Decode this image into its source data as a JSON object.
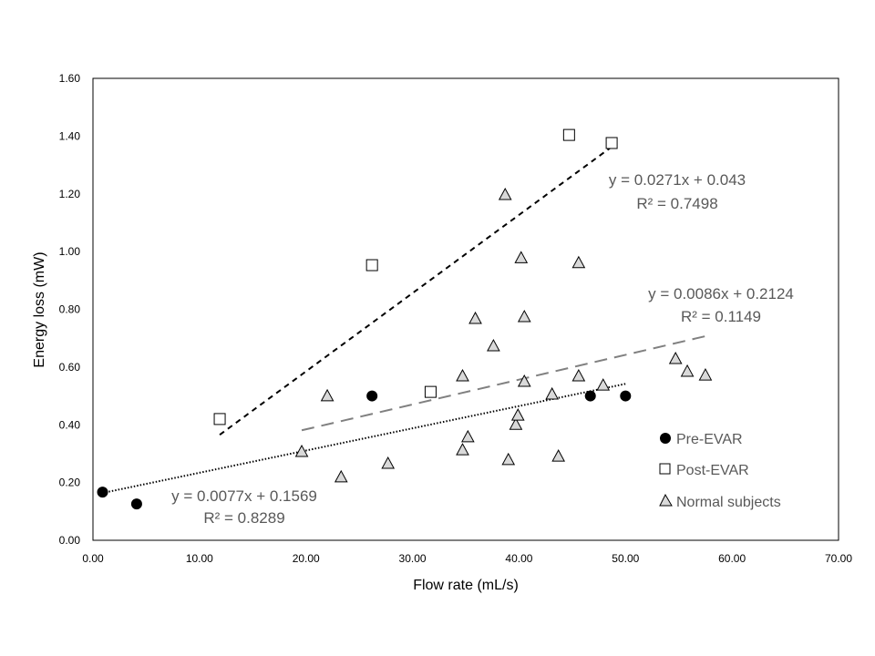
{
  "chart_data": {
    "type": "scatter",
    "xlabel": "Flow rate (mL/s)",
    "ylabel": "Energy loss (mW)",
    "xlim": [
      0,
      70
    ],
    "ylim": [
      0,
      1.6
    ],
    "xticks": [
      "0.00",
      "10.00",
      "20.00",
      "30.00",
      "40.00",
      "50.00",
      "60.00",
      "70.00"
    ],
    "yticks": [
      "0.00",
      "0.20",
      "0.40",
      "0.60",
      "0.80",
      "1.00",
      "1.20",
      "1.40",
      "1.60"
    ],
    "grid": false,
    "legend_position": "right",
    "series": [
      {
        "name": "Pre-EVAR",
        "marker": "filled-circle",
        "color": "#000000",
        "points": [
          [
            0.9,
            0.167
          ],
          [
            4.1,
            0.126
          ],
          [
            26.2,
            0.5
          ],
          [
            46.7,
            0.5
          ],
          [
            50.0,
            0.5
          ]
        ],
        "trendline": {
          "equation": "y = 0.0077x + 0.1569",
          "r2": "R² = 0.8289",
          "slope": 0.0077,
          "intercept": 0.1569,
          "x_range": [
            0.9,
            50.0
          ],
          "style": "dotted",
          "color": "#000000"
        }
      },
      {
        "name": "Post-EVAR",
        "marker": "open-square",
        "color": "#000000",
        "points": [
          [
            11.9,
            0.42
          ],
          [
            26.2,
            0.953
          ],
          [
            31.7,
            0.514
          ],
          [
            44.7,
            1.404
          ],
          [
            48.7,
            1.376
          ]
        ],
        "trendline": {
          "equation": "y = 0.0271x + 0.043",
          "r2": "R² = 0.7498",
          "slope": 0.0271,
          "intercept": 0.043,
          "x_range": [
            11.9,
            48.7
          ],
          "style": "short-dash",
          "color": "#000000"
        }
      },
      {
        "name": "Normal subjects",
        "marker": "open-triangle",
        "color": "#d9d9d9",
        "points": [
          [
            19.6,
            0.306
          ],
          [
            22.0,
            0.499
          ],
          [
            23.3,
            0.218
          ],
          [
            27.7,
            0.265
          ],
          [
            34.7,
            0.568
          ],
          [
            34.7,
            0.312
          ],
          [
            35.2,
            0.357
          ],
          [
            35.9,
            0.767
          ],
          [
            37.6,
            0.672
          ],
          [
            38.7,
            1.196
          ],
          [
            39.0,
            0.278
          ],
          [
            39.7,
            0.4
          ],
          [
            39.9,
            0.432
          ],
          [
            40.2,
            0.977
          ],
          [
            40.5,
            0.773
          ],
          [
            40.5,
            0.549
          ],
          [
            43.1,
            0.505
          ],
          [
            43.7,
            0.29
          ],
          [
            45.6,
            0.96
          ],
          [
            45.6,
            0.568
          ],
          [
            47.9,
            0.536
          ],
          [
            54.7,
            0.628
          ],
          [
            55.8,
            0.584
          ],
          [
            57.5,
            0.571
          ]
        ],
        "trendline": {
          "equation": "y = 0.0086x + 0.2124",
          "r2": "R² = 0.1149",
          "slope": 0.0086,
          "intercept": 0.2124,
          "x_range": [
            19.6,
            57.5
          ],
          "style": "long-dash",
          "color": "#808080"
        }
      }
    ]
  }
}
